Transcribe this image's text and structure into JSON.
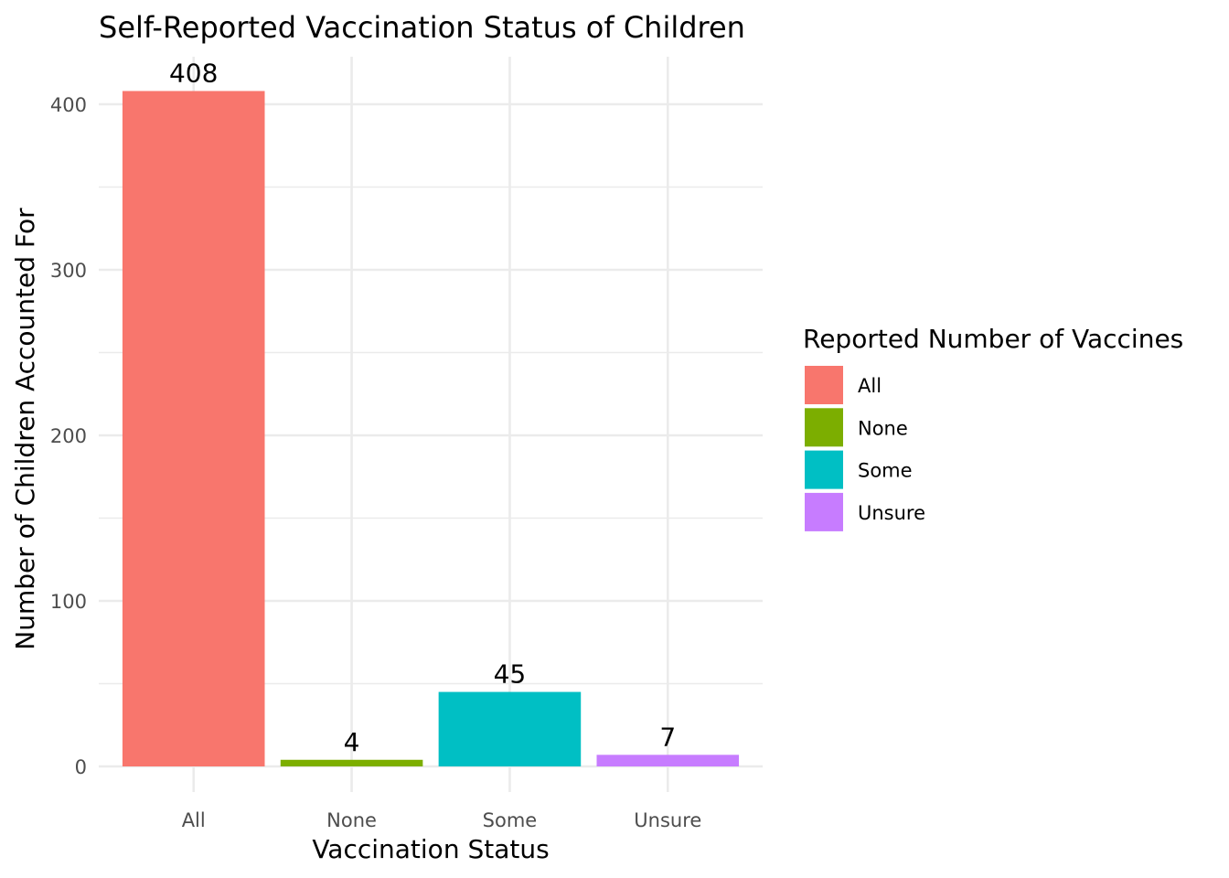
{
  "chart_data": {
    "type": "bar",
    "title": "Self-Reported Vaccination Status of Children",
    "xlabel": "Vaccination Status",
    "ylabel": "Number of Children Accounted For",
    "categories": [
      "All",
      "None",
      "Some",
      "Unsure"
    ],
    "values": [
      408,
      4,
      45,
      7
    ],
    "data_labels": [
      "408",
      "4",
      "45",
      "7"
    ],
    "colors": [
      "#F8766D",
      "#7CAE00",
      "#00BFC4",
      "#C77CFF"
    ],
    "ylim": [
      0,
      420
    ],
    "y_ticks": [
      0,
      100,
      200,
      300,
      400
    ],
    "y_tick_labels": [
      "0",
      "100",
      "200",
      "300",
      "400"
    ],
    "grid": true,
    "legend": {
      "title": "Reported Number of Vaccines",
      "position": "right",
      "entries": [
        "All",
        "None",
        "Some",
        "Unsure"
      ]
    }
  }
}
